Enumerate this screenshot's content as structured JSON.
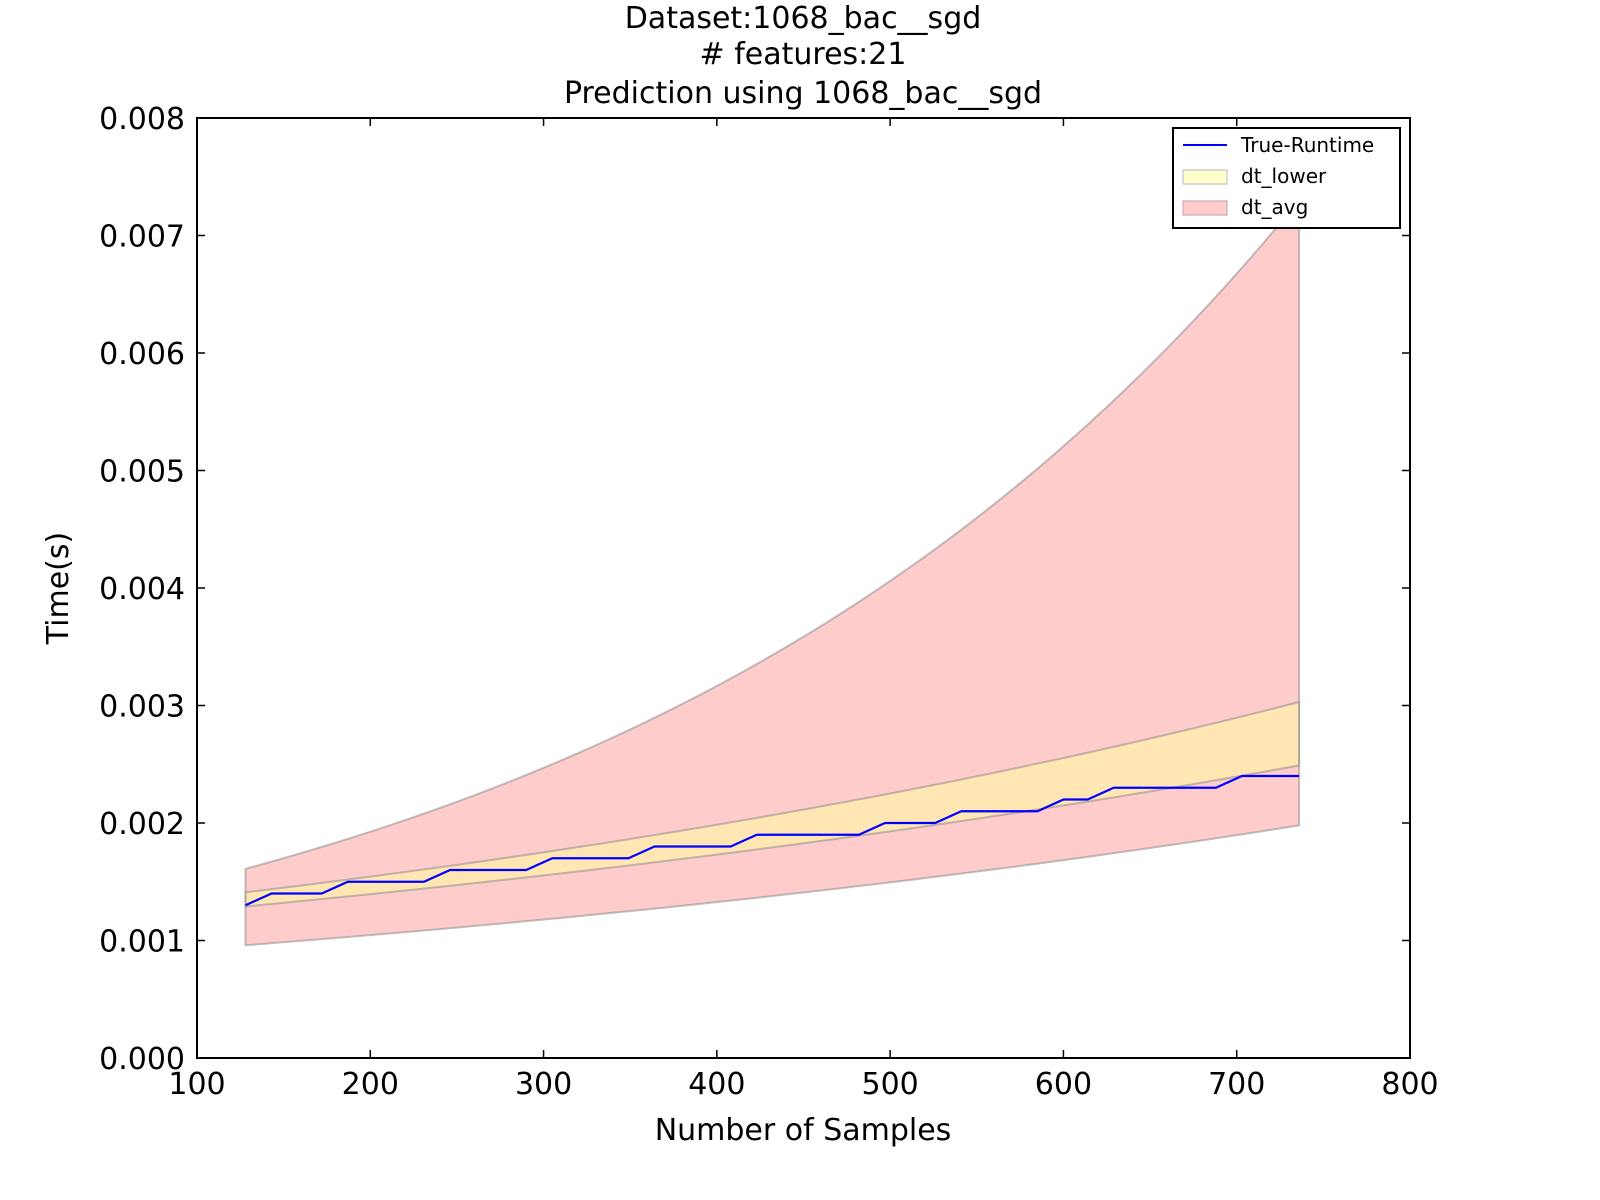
{
  "chart_data": {
    "type": "line",
    "title": [
      "Dataset:1068_bac__sgd",
      "# features:21",
      "Prediction using 1068_bac__sgd"
    ],
    "xlabel": "Number of Samples",
    "ylabel": "Time(s)",
    "xlim": [
      100,
      800
    ],
    "ylim": [
      0,
      0.008
    ],
    "x_ticks": [
      100,
      200,
      300,
      400,
      500,
      600,
      700,
      800
    ],
    "y_ticks": [
      0.0,
      0.001,
      0.002,
      0.003,
      0.004,
      0.005,
      0.006,
      0.007,
      0.008
    ],
    "x_tick_labels": [
      "100",
      "200",
      "300",
      "400",
      "500",
      "600",
      "700",
      "800"
    ],
    "y_tick_labels": [
      "0.000",
      "0.001",
      "0.002",
      "0.003",
      "0.004",
      "0.005",
      "0.006",
      "0.007",
      "0.008"
    ],
    "grid": false,
    "legend_position": "top-right",
    "series": [
      {
        "name": "True-Runtime",
        "kind": "line",
        "color": "#0000ff",
        "x": [
          128,
          143,
          157,
          172,
          187,
          201,
          216,
          231,
          246,
          260,
          275,
          290,
          305,
          319,
          334,
          349,
          364,
          378,
          393,
          408,
          423,
          437,
          452,
          467,
          482,
          497,
          511,
          526,
          541,
          555,
          570,
          585,
          600,
          614,
          629,
          644,
          659,
          673,
          688,
          703,
          717,
          736
        ],
        "y": [
          0.0013,
          0.0014,
          0.0014,
          0.0014,
          0.0015,
          0.0015,
          0.0015,
          0.0015,
          0.0016,
          0.0016,
          0.0016,
          0.0016,
          0.0017,
          0.0017,
          0.0017,
          0.0017,
          0.0018,
          0.0018,
          0.0018,
          0.0018,
          0.0019,
          0.0019,
          0.0019,
          0.0019,
          0.0019,
          0.002,
          0.002,
          0.002,
          0.0021,
          0.0021,
          0.0021,
          0.0021,
          0.0022,
          0.0022,
          0.0023,
          0.0023,
          0.0023,
          0.0023,
          0.0023,
          0.0024,
          0.0024,
          0.0024
        ]
      },
      {
        "name": "dt_lower",
        "kind": "band",
        "color": "#ffff99",
        "opacity": 0.5,
        "x": [
          128,
          736
        ],
        "lower": [
          0.00129,
          0.00249
        ],
        "upper": [
          0.00141,
          0.00303
        ]
      },
      {
        "name": "dt_avg",
        "kind": "band",
        "color": "#ff8080",
        "opacity": 0.4,
        "x": [
          128,
          736
        ],
        "lower": [
          0.00096,
          0.00198
        ],
        "upper": [
          0.00161,
          0.0073
        ]
      }
    ]
  }
}
